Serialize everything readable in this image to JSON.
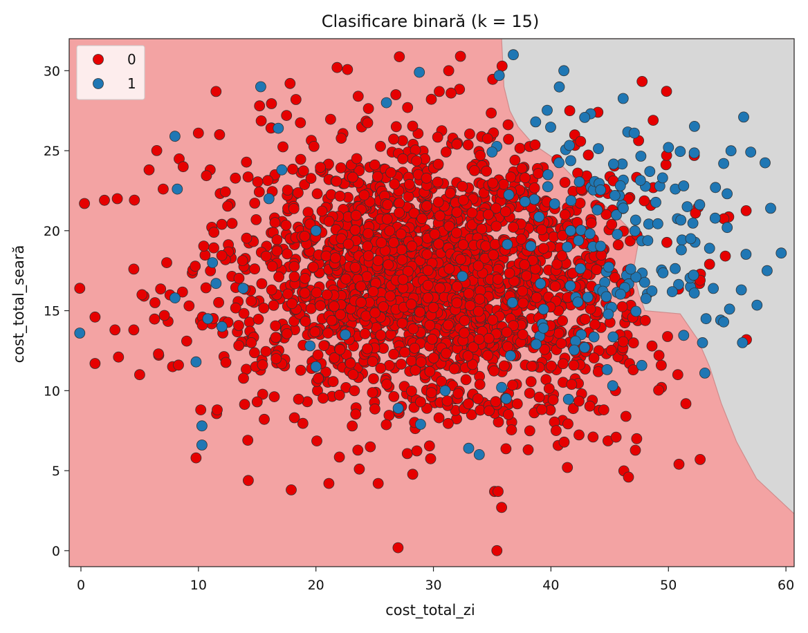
{
  "chart_data": {
    "type": "scatter",
    "title": "Clasificare binară (k = 15)",
    "xlabel": "cost_total_zi",
    "ylabel": "cost_total_seară",
    "xlim": [
      -1,
      60.7
    ],
    "ylim": [
      -1.0,
      32.0
    ],
    "xticks": [
      0,
      10,
      20,
      30,
      40,
      50,
      60
    ],
    "yticks": [
      0,
      5,
      10,
      15,
      20,
      25,
      30
    ],
    "grid": false,
    "legend": {
      "placement": "top-left",
      "entries": [
        "0",
        "1"
      ]
    },
    "colors": {
      "class_0_point": "#e60000",
      "class_1_point": "#1f77b4",
      "region_0": "#f3a3a3",
      "region_1": "#d7d7d7",
      "edge": "#333333"
    },
    "decision_boundary": {
      "description_free": true,
      "points": [
        [
          35.8,
          32.0
        ],
        [
          36.0,
          29.0
        ],
        [
          36.5,
          27.5
        ],
        [
          37.2,
          26.5
        ],
        [
          38.5,
          25.4
        ],
        [
          40.5,
          24.4
        ],
        [
          43.0,
          22.5
        ],
        [
          45.5,
          21.0
        ],
        [
          47.5,
          19.5
        ],
        [
          47.0,
          17.5
        ],
        [
          47.5,
          16.0
        ],
        [
          48.0,
          15.0
        ],
        [
          51.0,
          14.8
        ],
        [
          52.5,
          13.2
        ],
        [
          53.5,
          11.5
        ],
        [
          54.5,
          9.2
        ],
        [
          55.8,
          6.8
        ],
        [
          57.5,
          4.5
        ],
        [
          60.7,
          2.3
        ]
      ]
    },
    "series": [
      {
        "name": "0",
        "class": 0,
        "n_random": 2200,
        "center": [
          30.0,
          17.0
        ],
        "spread": [
          8.0,
          4.2
        ],
        "points": [
          [
            -0.1,
            16.4
          ],
          [
            0.3,
            21.7
          ],
          [
            1.2,
            14.6
          ],
          [
            1.2,
            11.7
          ],
          [
            2.0,
            21.9
          ],
          [
            2.9,
            13.8
          ],
          [
            3.2,
            12.1
          ],
          [
            3.1,
            22.0
          ],
          [
            4.5,
            17.6
          ],
          [
            4.5,
            13.8
          ],
          [
            5.0,
            11.0
          ],
          [
            5.2,
            16.0
          ],
          [
            5.8,
            23.8
          ],
          [
            6.3,
            15.5
          ],
          [
            6.6,
            12.3
          ],
          [
            7.0,
            22.6
          ],
          [
            7.1,
            14.7
          ],
          [
            7.3,
            18.0
          ],
          [
            7.8,
            11.5
          ],
          [
            8.3,
            11.6
          ],
          [
            8.7,
            24.0
          ],
          [
            9.2,
            15.3
          ],
          [
            9.8,
            5.8
          ],
          [
            10.0,
            26.1
          ],
          [
            10.2,
            8.8
          ],
          [
            11.5,
            28.7
          ],
          [
            11.8,
            26.0
          ],
          [
            11.6,
            8.8
          ],
          [
            14.2,
            6.9
          ],
          [
            14.5,
            13.0
          ],
          [
            15.0,
            9.3
          ],
          [
            15.2,
            27.8
          ],
          [
            17.5,
            27.2
          ],
          [
            17.8,
            29.2
          ],
          [
            17.9,
            3.8
          ],
          [
            18.3,
            28.2
          ],
          [
            21.1,
            4.2
          ],
          [
            21.8,
            30.2
          ],
          [
            23.6,
            28.4
          ],
          [
            25.3,
            4.2
          ],
          [
            26.8,
            28.5
          ],
          [
            27.8,
            27.7
          ],
          [
            30.5,
            28.7
          ],
          [
            31.3,
            30.0
          ],
          [
            31.5,
            28.6
          ],
          [
            32.3,
            30.9
          ],
          [
            35.2,
            3.7
          ],
          [
            35.5,
            3.7
          ],
          [
            35.8,
            2.7
          ],
          [
            35.4,
            0.0
          ],
          [
            41.4,
            5.2
          ],
          [
            41.6,
            27.5
          ],
          [
            46.6,
            4.6
          ],
          [
            48.7,
            26.9
          ],
          [
            50.9,
            5.4
          ],
          [
            52.7,
            5.7
          ],
          [
            52.2,
            24.7
          ],
          [
            50.8,
            11.0
          ],
          [
            52.7,
            16.9
          ],
          [
            52.3,
            21.1
          ],
          [
            53.5,
            17.9
          ],
          [
            41.2,
            21.0
          ],
          [
            44.5,
            8.8
          ],
          [
            45.5,
            10.0
          ],
          [
            47.3,
            7.0
          ],
          [
            47.0,
            11.3
          ],
          [
            44.0,
            27.4
          ]
        ]
      },
      {
        "name": "1",
        "class": 1,
        "n_random": 140,
        "center": [
          45.5,
          20.0
        ],
        "spread": [
          5.5,
          4.5
        ],
        "points": [
          [
            -0.1,
            13.6
          ],
          [
            8.0,
            25.9
          ],
          [
            8.2,
            22.6
          ],
          [
            8.0,
            15.8
          ],
          [
            9.8,
            11.8
          ],
          [
            10.3,
            7.8
          ],
          [
            10.3,
            6.6
          ],
          [
            15.3,
            29.0
          ],
          [
            16.8,
            26.4
          ],
          [
            28.8,
            29.9
          ],
          [
            35.6,
            29.7
          ],
          [
            36.8,
            31.0
          ],
          [
            41.1,
            30.0
          ],
          [
            38.7,
            26.8
          ],
          [
            56.4,
            27.1
          ],
          [
            58.7,
            21.4
          ],
          [
            59.6,
            18.6
          ],
          [
            58.4,
            17.5
          ],
          [
            56.2,
            16.3
          ],
          [
            54.7,
            24.2
          ],
          [
            54.0,
            22.7
          ],
          [
            55.0,
            20.2
          ],
          [
            56.3,
            13.0
          ],
          [
            55.2,
            15.1
          ],
          [
            54.7,
            14.3
          ],
          [
            53.5,
            18.9
          ],
          [
            53.2,
            14.5
          ],
          [
            52.9,
            13.0
          ],
          [
            53.1,
            11.1
          ],
          [
            50.0,
            25.2
          ],
          [
            49.5,
            23.3
          ],
          [
            51.3,
            22.8
          ],
          [
            51.6,
            21.5
          ],
          [
            51.9,
            19.5
          ],
          [
            52.2,
            16.1
          ],
          [
            51.1,
            18.8
          ],
          [
            36.2,
            9.5
          ],
          [
            35.8,
            10.2
          ],
          [
            33.0,
            6.4
          ],
          [
            33.9,
            6.0
          ],
          [
            28.9,
            7.9
          ],
          [
            27.0,
            8.9
          ],
          [
            31.0,
            10.0
          ],
          [
            22.5,
            13.5
          ],
          [
            20.0,
            11.5
          ],
          [
            19.5,
            12.8
          ],
          [
            12.0,
            14.0
          ],
          [
            11.5,
            16.7
          ],
          [
            10.8,
            14.5
          ],
          [
            11.2,
            18.0
          ],
          [
            13.8,
            16.4
          ],
          [
            16.0,
            22.0
          ],
          [
            17.1,
            23.8
          ],
          [
            20.0,
            20.0
          ],
          [
            26.0,
            28.0
          ]
        ]
      }
    ]
  }
}
